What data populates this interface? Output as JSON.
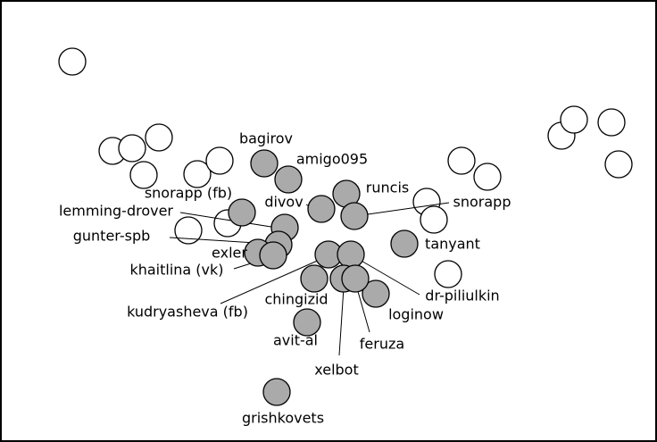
{
  "nodes": [
    {
      "label": "bagirov"
    },
    {
      "label": "amigo095"
    },
    {
      "label": "snorapp (fb)"
    },
    {
      "label": "divov"
    },
    {
      "label": "runcis"
    },
    {
      "label": "snorapp"
    },
    {
      "label": "lemming-drover"
    },
    {
      "label": "gunter-spb"
    },
    {
      "label": "exler"
    },
    {
      "label": "khaitlina (vk)"
    },
    {
      "label": "tanyant"
    },
    {
      "label": "chingizid"
    },
    {
      "label": "kudryasheva (fb)"
    },
    {
      "label": "dr-piliulkin"
    },
    {
      "label": "loginow"
    },
    {
      "label": "xelbot"
    },
    {
      "label": "feruza"
    },
    {
      "label": "avit-al"
    },
    {
      "label": "grishkovets"
    }
  ]
}
